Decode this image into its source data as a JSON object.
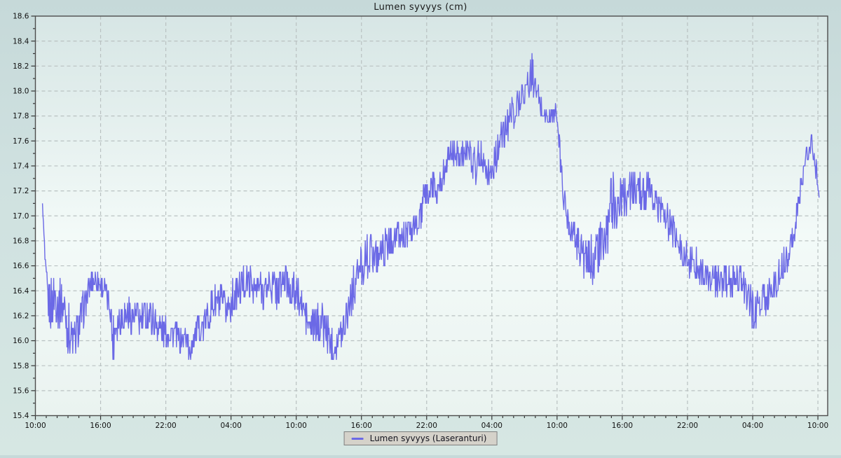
{
  "title": "Lumen syvyys (cm)",
  "legend": {
    "label": "Lumen syvyys (Laseranturi)"
  },
  "colors": {
    "series_line": "#6b69e6",
    "plot_frame": "#4d4d4d",
    "gridline": "#b9c1c1",
    "tick_text": "#111111",
    "plot_bg_top": "#d7e6e5",
    "plot_bg_mid": "#f3faf8",
    "plot_bg_bottom": "#eaf3f0",
    "legend_bg": "#d5d2ca",
    "legend_border": "#7f7f7f"
  },
  "chart_data": {
    "type": "line",
    "title": "Lumen syvyys (cm)",
    "series_name": "Lumen syvyys (Laseranturi)",
    "line_color": "#6b69e6",
    "grid": "dashed",
    "legend_position": "bottom-center",
    "ylim": [
      15.4,
      18.6
    ],
    "y_tick_step": 0.2,
    "y_minor_step": 0.1,
    "xlim_hours": [
      0,
      72.9
    ],
    "x_major_step_hours": 6,
    "x_minor_step_hours": 1,
    "x_tick_hours": [
      0,
      6,
      12,
      18,
      24,
      30,
      36,
      42,
      48,
      54,
      60,
      66,
      72
    ],
    "x_tick_labels": [
      "10:00",
      "16:00",
      "22:00",
      "04:00",
      "10:00",
      "16:00",
      "22:00",
      "04:00",
      "10:00",
      "16:00",
      "22:00",
      "04:00",
      "10:00"
    ],
    "y_unit": "cm",
    "noise_note": "points are [hours_from_start, depth_cm, sensor_noise_halfband_cm]; trace oscillates within value±band, quantized to 0.05 cm",
    "quantize_step": 0.05,
    "points": [
      [
        0.65,
        17.08,
        0
      ],
      [
        0.78,
        16.85,
        0.06
      ],
      [
        0.95,
        16.5,
        0.12
      ],
      [
        1.2,
        16.3,
        0.2
      ],
      [
        1.5,
        16.28,
        0.22
      ],
      [
        1.8,
        16.38,
        0.24
      ],
      [
        2.1,
        16.3,
        0.2
      ],
      [
        2.4,
        16.32,
        0.2
      ],
      [
        2.7,
        16.25,
        0.2
      ],
      [
        3.0,
        16.1,
        0.22
      ],
      [
        3.3,
        16.02,
        0.2
      ],
      [
        3.6,
        16.0,
        0.16
      ],
      [
        3.9,
        16.08,
        0.15
      ],
      [
        4.2,
        16.18,
        0.15
      ],
      [
        4.6,
        16.3,
        0.14
      ],
      [
        4.9,
        16.42,
        0.12
      ],
      [
        5.3,
        16.5,
        0.12
      ],
      [
        5.7,
        16.48,
        0.12
      ],
      [
        6.1,
        16.45,
        0.1
      ],
      [
        6.5,
        16.38,
        0.1
      ],
      [
        6.9,
        16.28,
        0.14
      ],
      [
        7.1,
        16.0,
        0.24
      ],
      [
        7.35,
        16.12,
        0.16
      ],
      [
        7.7,
        16.18,
        0.15
      ],
      [
        8.1,
        16.2,
        0.15
      ],
      [
        8.5,
        16.22,
        0.15
      ],
      [
        8.9,
        16.18,
        0.15
      ],
      [
        9.3,
        16.2,
        0.15
      ],
      [
        9.7,
        16.15,
        0.15
      ],
      [
        10.1,
        16.2,
        0.15
      ],
      [
        10.5,
        16.22,
        0.15
      ],
      [
        10.9,
        16.15,
        0.15
      ],
      [
        11.3,
        16.12,
        0.15
      ],
      [
        11.7,
        16.08,
        0.14
      ],
      [
        12.1,
        16.05,
        0.12
      ],
      [
        12.5,
        16.08,
        0.12
      ],
      [
        12.9,
        16.05,
        0.12
      ],
      [
        13.3,
        16.0,
        0.1
      ],
      [
        13.7,
        16.02,
        0.1
      ],
      [
        14.0,
        16.05,
        0.1
      ],
      [
        14.15,
        15.82,
        0.14
      ],
      [
        14.35,
        16.0,
        0.12
      ],
      [
        14.7,
        16.05,
        0.12
      ],
      [
        15.1,
        16.1,
        0.12
      ],
      [
        15.5,
        16.12,
        0.12
      ],
      [
        15.9,
        16.2,
        0.14
      ],
      [
        16.3,
        16.28,
        0.15
      ],
      [
        16.7,
        16.32,
        0.15
      ],
      [
        17.1,
        16.28,
        0.15
      ],
      [
        17.5,
        16.25,
        0.15
      ],
      [
        17.9,
        16.3,
        0.15
      ],
      [
        18.3,
        16.35,
        0.15
      ],
      [
        18.7,
        16.4,
        0.15
      ],
      [
        19.1,
        16.45,
        0.15
      ],
      [
        19.5,
        16.48,
        0.14
      ],
      [
        19.9,
        16.45,
        0.14
      ],
      [
        20.3,
        16.4,
        0.15
      ],
      [
        20.7,
        16.44,
        0.15
      ],
      [
        21.1,
        16.4,
        0.15
      ],
      [
        21.5,
        16.46,
        0.15
      ],
      [
        21.9,
        16.42,
        0.15
      ],
      [
        22.3,
        16.4,
        0.16
      ],
      [
        22.7,
        16.46,
        0.18
      ],
      [
        23.1,
        16.48,
        0.18
      ],
      [
        23.5,
        16.42,
        0.15
      ],
      [
        23.9,
        16.38,
        0.15
      ],
      [
        24.3,
        16.32,
        0.15
      ],
      [
        24.7,
        16.25,
        0.15
      ],
      [
        25.1,
        16.12,
        0.15
      ],
      [
        25.5,
        16.1,
        0.14
      ],
      [
        25.9,
        16.12,
        0.15
      ],
      [
        26.3,
        16.16,
        0.18
      ],
      [
        26.7,
        16.1,
        0.15
      ],
      [
        27.1,
        16.02,
        0.15
      ],
      [
        27.5,
        15.96,
        0.13
      ],
      [
        27.9,
        16.0,
        0.14
      ],
      [
        28.3,
        16.12,
        0.15
      ],
      [
        28.7,
        16.25,
        0.18
      ],
      [
        29.1,
        16.38,
        0.18
      ],
      [
        29.5,
        16.5,
        0.16
      ],
      [
        29.9,
        16.58,
        0.16
      ],
      [
        30.3,
        16.65,
        0.18
      ],
      [
        30.7,
        16.72,
        0.18
      ],
      [
        31.1,
        16.7,
        0.13
      ],
      [
        31.5,
        16.68,
        0.13
      ],
      [
        31.9,
        16.72,
        0.13
      ],
      [
        32.3,
        16.75,
        0.14
      ],
      [
        32.7,
        16.8,
        0.14
      ],
      [
        33.1,
        16.85,
        0.13
      ],
      [
        33.5,
        16.82,
        0.13
      ],
      [
        33.9,
        16.84,
        0.13
      ],
      [
        34.3,
        16.86,
        0.12
      ],
      [
        34.7,
        16.9,
        0.1
      ],
      [
        35.1,
        16.92,
        0.1
      ],
      [
        35.5,
        17.0,
        0.12
      ],
      [
        35.8,
        17.15,
        0.13
      ],
      [
        36.2,
        17.2,
        0.13
      ],
      [
        36.6,
        17.25,
        0.13
      ],
      [
        37.0,
        17.22,
        0.14
      ],
      [
        37.4,
        17.3,
        0.12
      ],
      [
        37.8,
        17.42,
        0.1
      ],
      [
        38.2,
        17.5,
        0.1
      ],
      [
        38.6,
        17.5,
        0.12
      ],
      [
        39.0,
        17.5,
        0.13
      ],
      [
        39.4,
        17.52,
        0.13
      ],
      [
        39.8,
        17.5,
        0.13
      ],
      [
        40.2,
        17.45,
        0.14
      ],
      [
        40.6,
        17.42,
        0.2
      ],
      [
        41.0,
        17.5,
        0.13
      ],
      [
        41.4,
        17.45,
        0.13
      ],
      [
        41.8,
        17.3,
        0.15
      ],
      [
        42.1,
        17.4,
        0.13
      ],
      [
        42.5,
        17.52,
        0.13
      ],
      [
        42.9,
        17.62,
        0.13
      ],
      [
        43.3,
        17.7,
        0.13
      ],
      [
        43.7,
        17.8,
        0.13
      ],
      [
        44.1,
        17.85,
        0.13
      ],
      [
        44.5,
        17.92,
        0.13
      ],
      [
        44.9,
        18.0,
        0.13
      ],
      [
        45.3,
        18.05,
        0.13
      ],
      [
        45.7,
        18.15,
        0.14
      ],
      [
        46.0,
        18.02,
        0.13
      ],
      [
        46.4,
        17.9,
        0.12
      ],
      [
        46.8,
        17.82,
        0.1
      ],
      [
        47.2,
        17.78,
        0.08
      ],
      [
        47.6,
        17.8,
        0.08
      ],
      [
        47.9,
        17.85,
        0.06
      ],
      [
        48.15,
        17.6,
        0.16
      ],
      [
        48.45,
        17.3,
        0.16
      ],
      [
        48.75,
        17.05,
        0.12
      ],
      [
        49.1,
        16.95,
        0.12
      ],
      [
        49.5,
        16.85,
        0.13
      ],
      [
        49.9,
        16.8,
        0.15
      ],
      [
        50.3,
        16.72,
        0.18
      ],
      [
        50.7,
        16.6,
        0.2
      ],
      [
        51.1,
        16.65,
        0.2
      ],
      [
        51.5,
        16.7,
        0.22
      ],
      [
        51.9,
        16.72,
        0.22
      ],
      [
        52.3,
        16.78,
        0.22
      ],
      [
        52.7,
        16.85,
        0.2
      ],
      [
        53.05,
        17.2,
        0.35
      ],
      [
        53.35,
        17.05,
        0.2
      ],
      [
        53.7,
        17.1,
        0.18
      ],
      [
        54.1,
        17.16,
        0.18
      ],
      [
        54.5,
        17.2,
        0.18
      ],
      [
        54.9,
        17.22,
        0.16
      ],
      [
        55.3,
        17.2,
        0.14
      ],
      [
        55.7,
        17.2,
        0.14
      ],
      [
        56.1,
        17.16,
        0.16
      ],
      [
        56.5,
        17.2,
        0.15
      ],
      [
        56.9,
        17.12,
        0.14
      ],
      [
        57.3,
        17.08,
        0.14
      ],
      [
        57.7,
        17.04,
        0.14
      ],
      [
        58.1,
        16.96,
        0.14
      ],
      [
        58.5,
        16.9,
        0.14
      ],
      [
        58.9,
        16.82,
        0.14
      ],
      [
        59.3,
        16.75,
        0.14
      ],
      [
        59.7,
        16.7,
        0.14
      ],
      [
        60.1,
        16.65,
        0.14
      ],
      [
        60.5,
        16.6,
        0.18
      ],
      [
        60.9,
        16.62,
        0.14
      ],
      [
        61.3,
        16.55,
        0.14
      ],
      [
        61.7,
        16.5,
        0.14
      ],
      [
        62.1,
        16.5,
        0.14
      ],
      [
        62.5,
        16.48,
        0.14
      ],
      [
        62.9,
        16.45,
        0.14
      ],
      [
        63.3,
        16.48,
        0.14
      ],
      [
        63.7,
        16.46,
        0.14
      ],
      [
        64.1,
        16.45,
        0.14
      ],
      [
        64.5,
        16.55,
        0.16
      ],
      [
        64.9,
        16.48,
        0.14
      ],
      [
        65.3,
        16.4,
        0.14
      ],
      [
        65.7,
        16.32,
        0.14
      ],
      [
        66.1,
        16.22,
        0.18
      ],
      [
        66.5,
        16.3,
        0.14
      ],
      [
        66.9,
        16.28,
        0.18
      ],
      [
        67.3,
        16.35,
        0.14
      ],
      [
        67.7,
        16.42,
        0.14
      ],
      [
        68.1,
        16.46,
        0.14
      ],
      [
        68.5,
        16.55,
        0.14
      ],
      [
        68.9,
        16.62,
        0.14
      ],
      [
        69.3,
        16.72,
        0.13
      ],
      [
        69.7,
        16.85,
        0.12
      ],
      [
        70.1,
        17.02,
        0.1
      ],
      [
        70.5,
        17.28,
        0.1
      ],
      [
        70.9,
        17.45,
        0.1
      ],
      [
        71.2,
        17.55,
        0.1
      ],
      [
        71.45,
        17.6,
        0.08
      ],
      [
        71.7,
        17.45,
        0.12
      ],
      [
        71.95,
        17.28,
        0.08
      ],
      [
        72.2,
        17.15,
        0.04
      ]
    ]
  }
}
